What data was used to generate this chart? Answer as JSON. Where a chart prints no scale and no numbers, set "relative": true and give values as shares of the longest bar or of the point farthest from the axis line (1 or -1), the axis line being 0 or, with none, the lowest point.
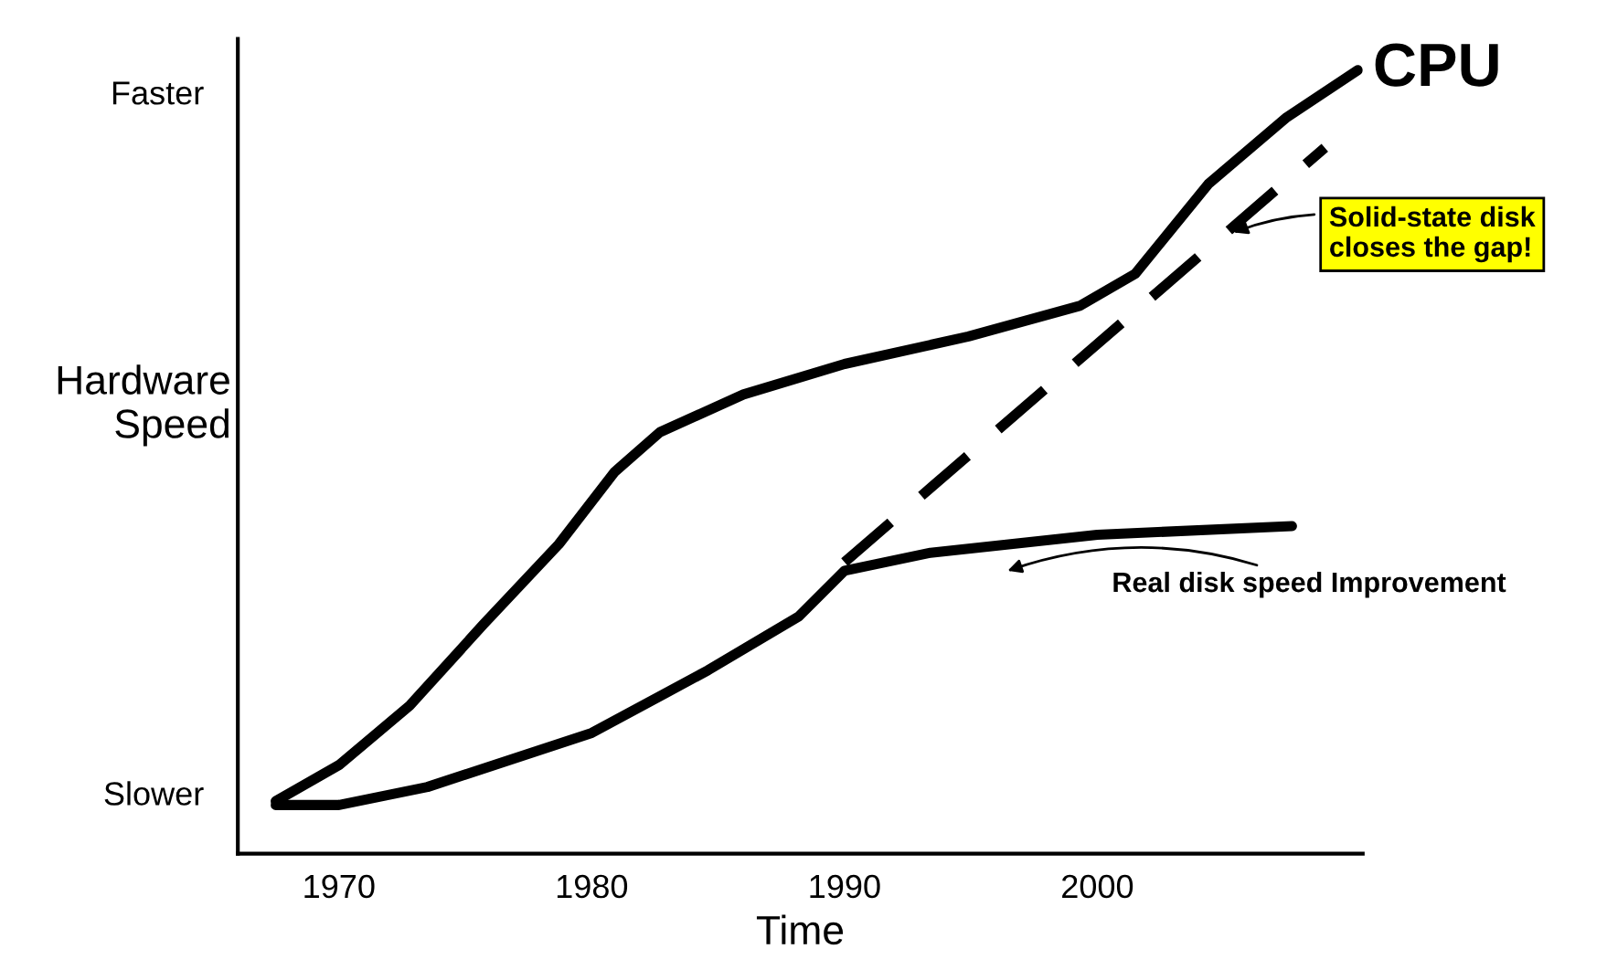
{
  "chart_data": {
    "type": "line",
    "relative": true,
    "xlabel": "Time",
    "ylabel": "Hardware\nSpeed",
    "xlim": [
      1966,
      2010.5
    ],
    "xticks": [
      1970,
      1980,
      1990,
      2000
    ],
    "grid": false,
    "marker": "none",
    "series": [
      {
        "name": "CPU",
        "color": "#000000",
        "line_style": "solid",
        "x": [
          1967.5,
          1970,
          1972.8,
          1975.7,
          1978.7,
          1980.9,
          1982.7,
          1986,
          1990,
          1994.9,
          1999.3,
          2001.5,
          2004.4,
          2007.5,
          2010.3
        ],
        "values": [
          0.067,
          0.113,
          0.189,
          0.292,
          0.395,
          0.487,
          0.538,
          0.586,
          0.625,
          0.66,
          0.699,
          0.74,
          0.855,
          0.94,
          1.0
        ]
      },
      {
        "color": "#000000",
        "line_style": "solid",
        "x": [
          1967.5,
          1970,
          1973.5,
          1980,
          1984.6,
          1988.2,
          1990,
          1993.4,
          2000,
          2007.7
        ],
        "values": [
          0.062,
          0.062,
          0.085,
          0.154,
          0.234,
          0.303,
          0.361,
          0.384,
          0.407,
          0.418
        ]
      },
      {
        "color": "#000000",
        "line_style": "dashed",
        "x": [
          1990,
          2009
        ],
        "values": [
          0.372,
          0.901
        ]
      }
    ],
    "annotations": [
      "Faster",
      "Slower",
      "Solid-state disk\ncloses the gap!",
      "Real disk speed Improvement"
    ]
  }
}
